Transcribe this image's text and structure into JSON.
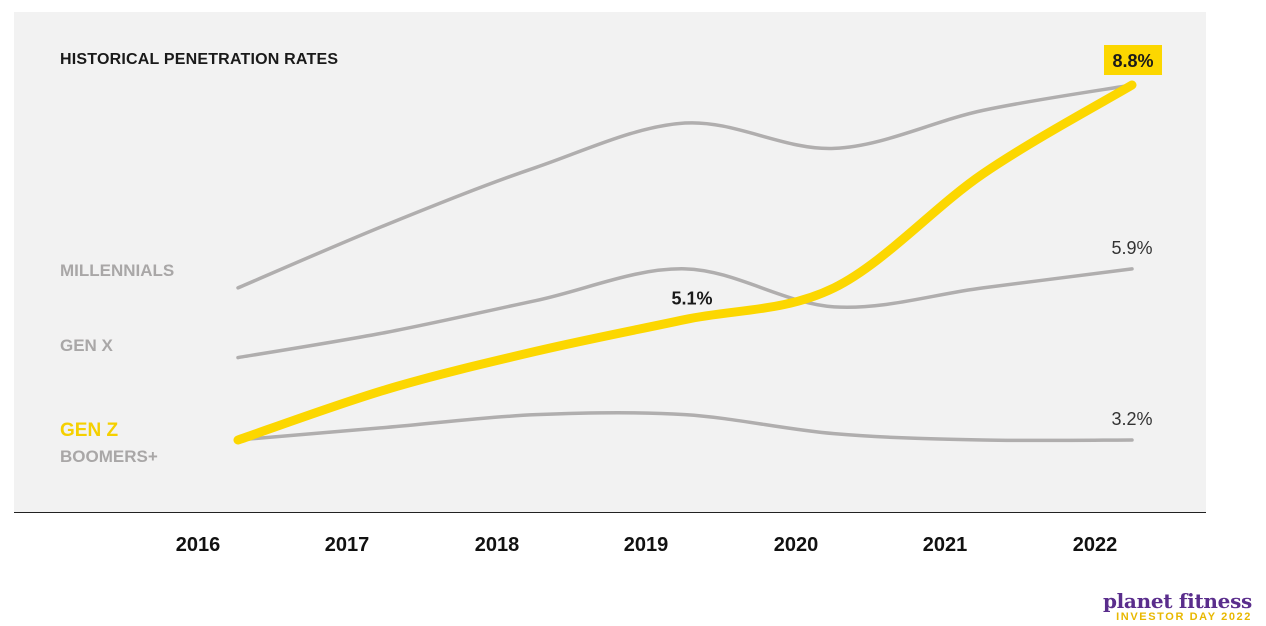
{
  "title": "HISTORICAL PENETRATION RATES",
  "logo": {
    "brand": "planet fitness",
    "event": "INVESTOR DAY 2022"
  },
  "colors": {
    "highlight": "#fcd700",
    "gray": "#b0aeae",
    "brand": "#5a2d8c"
  },
  "chart_data": {
    "type": "line",
    "title": "HISTORICAL PENETRATION RATES",
    "x": [
      "2016",
      "2017",
      "2018",
      "2019",
      "2020",
      "2021",
      "2022"
    ],
    "series": [
      {
        "name": "MILLENNIALS",
        "values": [
          5.6,
          6.6,
          7.5,
          8.2,
          7.8,
          8.4,
          8.8
        ]
      },
      {
        "name": "GEN X",
        "values": [
          4.5,
          4.9,
          5.4,
          5.9,
          5.3,
          5.6,
          5.9
        ]
      },
      {
        "name": "GEN Z",
        "values": [
          3.2,
          4.0,
          4.6,
          5.1,
          5.6,
          7.4,
          8.8
        ],
        "highlight": true
      },
      {
        "name": "BOOMERS+",
        "values": [
          3.2,
          3.4,
          3.6,
          3.6,
          3.3,
          3.2,
          3.2
        ]
      }
    ],
    "data_labels": [
      {
        "series": "GEN Z",
        "x": "2019",
        "text": "5.1%"
      },
      {
        "series": "GEN Z",
        "x": "2022",
        "text": "8.8%",
        "boxed": true
      },
      {
        "series": "GEN X",
        "x": "2022",
        "text": "5.9%"
      },
      {
        "series": "BOOMERS+",
        "x": "2022",
        "text": "3.2%"
      }
    ],
    "grid": false,
    "legend": "left, inline labels"
  }
}
